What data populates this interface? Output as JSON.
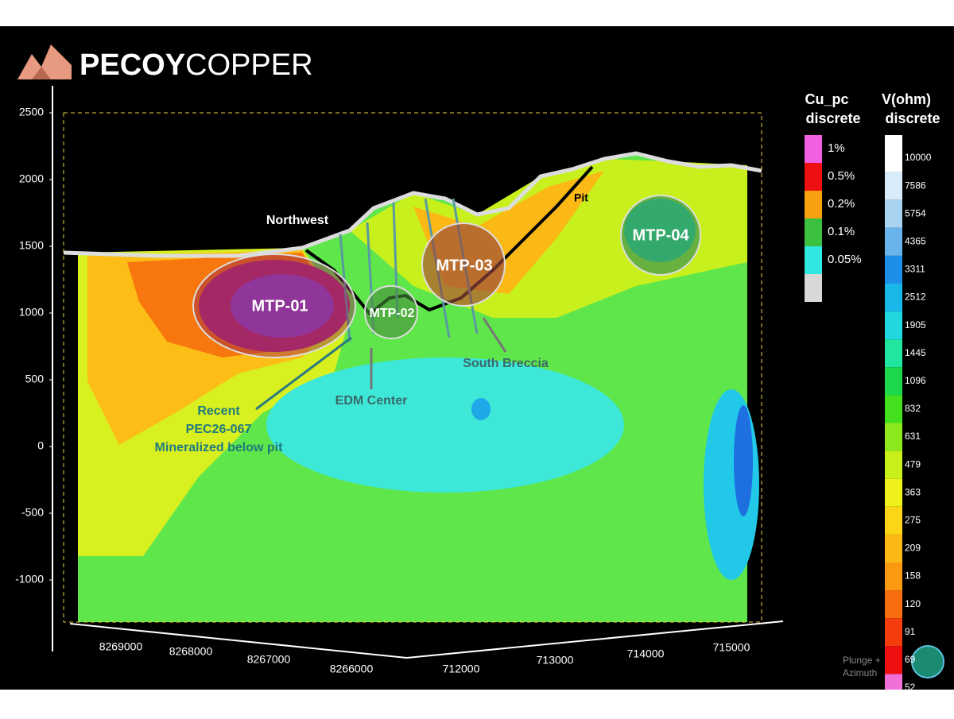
{
  "logo": {
    "brand_bold": "PECOY",
    "brand_light": "COPPER"
  },
  "section": {
    "elevation_ticks": [
      2500,
      2000,
      1500,
      1000,
      500,
      0,
      -500,
      -1000
    ],
    "northing_ticks": [
      8269000,
      8268000,
      8267000,
      8266000
    ],
    "easting_ticks": [
      712000,
      713000,
      714000,
      715000
    ]
  },
  "annotations": {
    "northwest": "Northwest",
    "pit": "Pit",
    "targets": [
      "MTP-01",
      "MTP-02",
      "MTP-03",
      "MTP-04"
    ],
    "edm_center": "EDM Center",
    "south_breccia": "South Breccia",
    "recent": [
      "Recent",
      "PEC26-067",
      "Mineralized below pit"
    ]
  },
  "legend_cu": {
    "title": [
      "Cu_pc",
      "discrete"
    ],
    "labels": [
      "1%",
      "0.5%",
      "0.2%",
      "0.1%",
      "0.05%"
    ],
    "colors": [
      "#f060e0",
      "#ee1010",
      "#f8a010",
      "#3cc040",
      "#30e8e0",
      "#d8d8d8"
    ]
  },
  "legend_v": {
    "title": [
      "V(ohm)",
      "discrete"
    ],
    "labels": [
      10000,
      7586,
      5754,
      4365,
      3311,
      2512,
      1905,
      1445,
      1096,
      832,
      631,
      479,
      363,
      275,
      209,
      158,
      120,
      91,
      69,
      52
    ],
    "colors": [
      "#ffffff",
      "#d7ecf8",
      "#a8d4f2",
      "#6ab4ec",
      "#1e8fe8",
      "#19b6ea",
      "#22d8e0",
      "#20e6a0",
      "#1cd84a",
      "#44e020",
      "#8ee81e",
      "#c8f01c",
      "#eef21a",
      "#fcd418",
      "#fcb814",
      "#fb9a10",
      "#f86e0e",
      "#f43c0c",
      "#ee1010",
      "#f070d8"
    ]
  },
  "view": {
    "plunge": "Plunge +",
    "azimuth": "Azimuth"
  }
}
